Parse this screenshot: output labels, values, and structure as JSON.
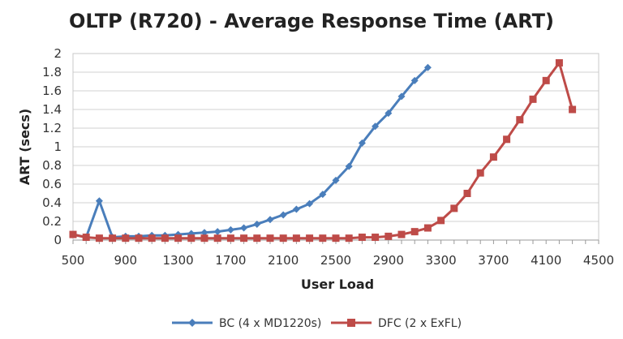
{
  "chart_data": {
    "type": "line",
    "title": "OLTP (R720) - Average Response Time (ART)",
    "xlabel": "User Load",
    "ylabel": "ART (secs)",
    "xlim": [
      500,
      4500
    ],
    "ylim": [
      0,
      2
    ],
    "x_ticks": [
      "500",
      "900",
      "1300",
      "1700",
      "2100",
      "2500",
      "2900",
      "3300",
      "3700",
      "4100",
      "4500"
    ],
    "y_ticks": [
      "0",
      "0.2",
      "0.4",
      "0.6",
      "0.8",
      "1",
      "1.2",
      "1.4",
      "1.6",
      "1.8",
      "2"
    ],
    "grid": "horizontal",
    "legend_position": "bottom",
    "series": [
      {
        "name": "BC (4 x MD1220s)",
        "color": "#4a7ebb",
        "marker": "diamond",
        "x": [
          500,
          600,
          700,
          800,
          900,
          1000,
          1100,
          1200,
          1300,
          1400,
          1500,
          1600,
          1700,
          1800,
          1900,
          2000,
          2100,
          2200,
          2300,
          2400,
          2500,
          2600,
          2700,
          2800,
          2900,
          3000,
          3100,
          3200
        ],
        "y": [
          0.06,
          0.03,
          0.42,
          0.03,
          0.04,
          0.04,
          0.05,
          0.05,
          0.06,
          0.07,
          0.08,
          0.09,
          0.11,
          0.13,
          0.17,
          0.22,
          0.27,
          0.33,
          0.39,
          0.49,
          0.64,
          0.79,
          1.04,
          1.22,
          1.36,
          1.54,
          1.71,
          1.85
        ]
      },
      {
        "name": "DFC (2 x ExFL)",
        "color": "#be4b48",
        "marker": "square",
        "x": [
          500,
          600,
          700,
          800,
          900,
          1000,
          1100,
          1200,
          1300,
          1400,
          1500,
          1600,
          1700,
          1800,
          1900,
          2000,
          2100,
          2200,
          2300,
          2400,
          2500,
          2600,
          2700,
          2800,
          2900,
          3000,
          3100,
          3200,
          3300,
          3400,
          3500,
          3600,
          3700,
          3800,
          3900,
          4000,
          4100,
          4200,
          4300
        ],
        "y": [
          0.06,
          0.03,
          0.02,
          0.02,
          0.02,
          0.02,
          0.02,
          0.02,
          0.02,
          0.02,
          0.02,
          0.02,
          0.02,
          0.02,
          0.02,
          0.02,
          0.02,
          0.02,
          0.02,
          0.02,
          0.02,
          0.02,
          0.03,
          0.03,
          0.04,
          0.06,
          0.09,
          0.13,
          0.21,
          0.34,
          0.5,
          0.72,
          0.89,
          1.08,
          1.29,
          1.51,
          1.71,
          1.9,
          1.4
        ]
      }
    ]
  }
}
